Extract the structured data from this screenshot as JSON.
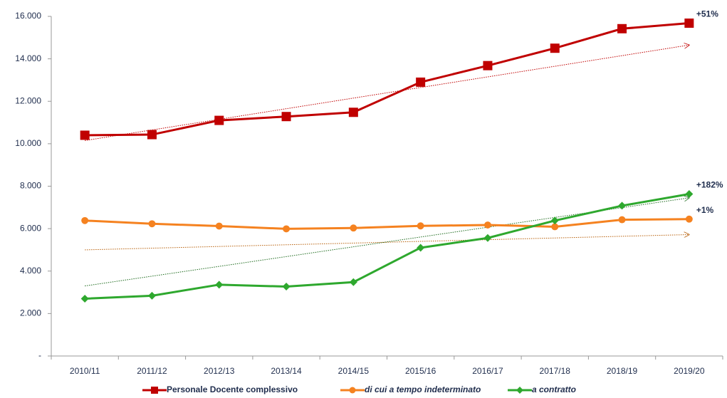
{
  "chart_data": {
    "type": "line",
    "categories": [
      "2010/11",
      "2011/12",
      "2012/13",
      "2013/14",
      "2014/15",
      "2015/16",
      "2016/17",
      "2017/18",
      "2018/19",
      "2019/20"
    ],
    "series": [
      {
        "name": "Personale Docente complessivo",
        "color": "#c00000",
        "marker": "square",
        "values": [
          10400,
          10430,
          11100,
          11280,
          11480,
          12900,
          13680,
          14500,
          15420,
          15680
        ]
      },
      {
        "name": "di cui a tempo indeterminato",
        "color": "#f58220",
        "marker": "circle",
        "italic": true,
        "values": [
          6380,
          6230,
          6120,
          5990,
          6030,
          6130,
          6170,
          6090,
          6420,
          6450
        ]
      },
      {
        "name": "a contratto",
        "color": "#2ea82e",
        "marker": "diamond",
        "italic": true,
        "values": [
          2700,
          2840,
          3360,
          3270,
          3480,
          5100,
          5560,
          6380,
          7080,
          7630
        ]
      }
    ],
    "trendlines": [
      {
        "color": "#c00000",
        "values": [
          10150,
          14650
        ]
      },
      {
        "color": "#b8600b",
        "values": [
          5000,
          5720
        ]
      },
      {
        "color": "#1e6b1e",
        "values": [
          3300,
          7450
        ]
      }
    ],
    "annotations": [
      {
        "text": "+51%",
        "series": 0,
        "color": "#b8600b"
      },
      {
        "text": "+182%",
        "series": 2,
        "color": "#1e7a1e"
      },
      {
        "text": "+1%",
        "series": 1,
        "color": "#b8600b"
      }
    ],
    "ylim": [
      0,
      16000
    ],
    "yticks": [
      {
        "value": 0,
        "label": "-"
      },
      {
        "value": 2000,
        "label": "2.000"
      },
      {
        "value": 4000,
        "label": "4.000"
      },
      {
        "value": 6000,
        "label": "6.000"
      },
      {
        "value": 8000,
        "label": "8.000"
      },
      {
        "value": 10000,
        "label": "10.000"
      },
      {
        "value": 12000,
        "label": "12.000"
      },
      {
        "value": 14000,
        "label": "14.000"
      },
      {
        "value": 16000,
        "label": "16.000"
      }
    ],
    "legend": "bottom"
  }
}
